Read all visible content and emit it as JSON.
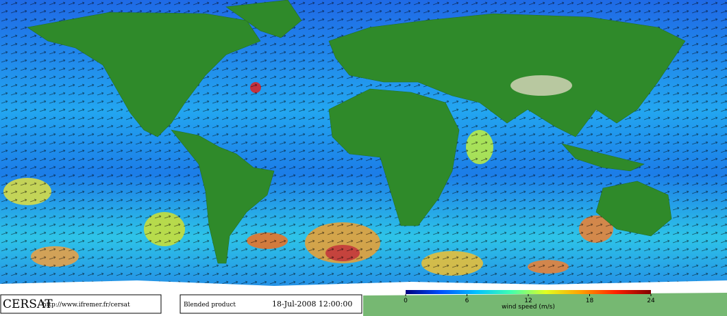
{
  "labels": {
    "brand": "CERSAT",
    "url": "http://www.ifremer.fr/cersat",
    "product": "Blended product",
    "datetime": "18-Jul-2008 12:00:00"
  },
  "colorbar": {
    "label": "wind speed (m/s)",
    "lim": [
      0,
      24
    ],
    "ticks": [
      0,
      6,
      12,
      18,
      24
    ],
    "colors": [
      "#00007f",
      "#0050ff",
      "#00c0ff",
      "#40ffb0",
      "#e0ff20",
      "#ffa000",
      "#ff2000",
      "#800000"
    ]
  }
}
